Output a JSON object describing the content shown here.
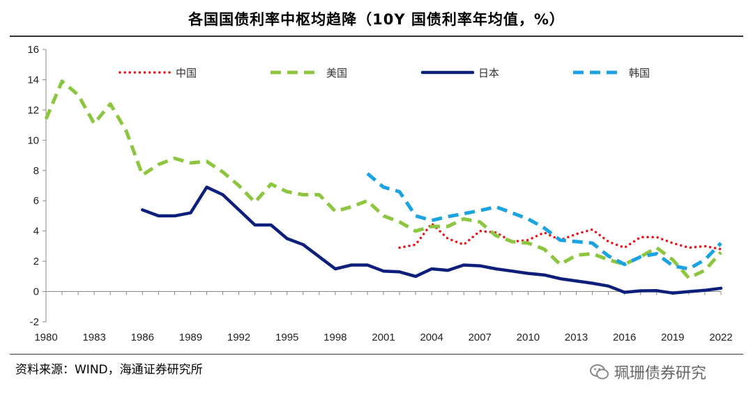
{
  "header": {
    "title": "各国国债利率中枢均趋降（10Y 国债利率年均值，%）"
  },
  "footer": {
    "source": "资料来源：WIND，海通证券研究所",
    "watermark": "珮珊债券研究"
  },
  "chart_data": {
    "type": "line",
    "title": "各国国债利率中枢均趋降（10Y 国债利率年均值，%）",
    "xlabel": "",
    "ylabel": "",
    "xlim": [
      1980,
      2022
    ],
    "ylim": [
      -2,
      16
    ],
    "yticks": [
      -2,
      0,
      2,
      4,
      6,
      8,
      10,
      12,
      14,
      16
    ],
    "xticks": [
      1980,
      1983,
      1986,
      1989,
      1992,
      1995,
      1998,
      2001,
      2004,
      2007,
      2010,
      2013,
      2016,
      2019,
      2022
    ],
    "legend_position": "top",
    "series": [
      {
        "name": "中国",
        "color": "#e8141b",
        "style": "dotted",
        "x": [
          2002,
          2003,
          2004,
          2005,
          2006,
          2007,
          2008,
          2009,
          2010,
          2011,
          2012,
          2013,
          2014,
          2015,
          2016,
          2017,
          2018,
          2019,
          2020,
          2021,
          2022
        ],
        "values": [
          2.9,
          3.1,
          4.5,
          3.5,
          3.1,
          4.0,
          3.9,
          3.3,
          3.4,
          3.9,
          3.4,
          3.8,
          4.1,
          3.3,
          2.9,
          3.6,
          3.6,
          3.2,
          2.9,
          3.0,
          2.8
        ]
      },
      {
        "name": "美国",
        "color": "#8cc63f",
        "style": "dashed",
        "x": [
          1980,
          1981,
          1982,
          1983,
          1984,
          1985,
          1986,
          1987,
          1988,
          1989,
          1990,
          1991,
          1992,
          1993,
          1994,
          1995,
          1996,
          1997,
          1998,
          1999,
          2000,
          2001,
          2002,
          2003,
          2004,
          2005,
          2006,
          2007,
          2008,
          2009,
          2010,
          2011,
          2012,
          2013,
          2014,
          2015,
          2016,
          2017,
          2018,
          2019,
          2020,
          2021,
          2022
        ],
        "values": [
          11.4,
          13.9,
          13.0,
          11.1,
          12.4,
          10.6,
          7.7,
          8.4,
          8.8,
          8.5,
          8.6,
          7.9,
          7.0,
          5.9,
          7.1,
          6.6,
          6.4,
          6.4,
          5.3,
          5.6,
          6.0,
          5.0,
          4.6,
          4.0,
          4.3,
          4.3,
          4.8,
          4.6,
          3.7,
          3.3,
          3.2,
          2.8,
          1.8,
          2.4,
          2.5,
          2.1,
          1.8,
          2.3,
          2.9,
          2.1,
          0.9,
          1.4,
          2.6
        ]
      },
      {
        "name": "日本",
        "color": "#0d1f7a",
        "style": "solid",
        "x": [
          1986,
          1987,
          1988,
          1989,
          1990,
          1991,
          1992,
          1993,
          1994,
          1995,
          1996,
          1997,
          1998,
          1999,
          2000,
          2001,
          2002,
          2003,
          2004,
          2005,
          2006,
          2007,
          2008,
          2009,
          2010,
          2011,
          2012,
          2013,
          2014,
          2015,
          2016,
          2017,
          2018,
          2019,
          2020,
          2021,
          2022
        ],
        "values": [
          5.4,
          5.0,
          5.0,
          5.2,
          6.9,
          6.4,
          5.4,
          4.4,
          4.4,
          3.5,
          3.1,
          2.3,
          1.5,
          1.75,
          1.75,
          1.35,
          1.3,
          1.0,
          1.5,
          1.4,
          1.75,
          1.7,
          1.5,
          1.35,
          1.2,
          1.1,
          0.85,
          0.7,
          0.55,
          0.36,
          -0.05,
          0.05,
          0.06,
          -0.1,
          0.0,
          0.08,
          0.22
        ]
      },
      {
        "name": "韩国",
        "color": "#1aa3e0",
        "style": "dashed",
        "x": [
          2000,
          2001,
          2002,
          2003,
          2004,
          2005,
          2006,
          2007,
          2008,
          2009,
          2010,
          2011,
          2012,
          2013,
          2014,
          2015,
          2016,
          2017,
          2018,
          2019,
          2020,
          2021,
          2022
        ],
        "values": [
          7.8,
          6.9,
          6.6,
          5.0,
          4.7,
          4.95,
          5.15,
          5.35,
          5.6,
          5.2,
          4.8,
          4.2,
          3.4,
          3.3,
          3.2,
          2.35,
          1.8,
          2.3,
          2.5,
          1.7,
          1.5,
          2.1,
          3.2
        ]
      }
    ]
  }
}
